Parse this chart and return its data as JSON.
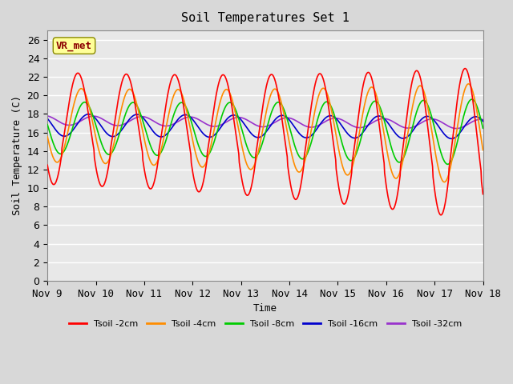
{
  "title": "Soil Temperatures Set 1",
  "xlabel": "Time",
  "ylabel": "Soil Temperature (C)",
  "xlim": [
    0,
    9
  ],
  "ylim": [
    0,
    27
  ],
  "yticks": [
    0,
    2,
    4,
    6,
    8,
    10,
    12,
    14,
    16,
    18,
    20,
    22,
    24,
    26
  ],
  "xtick_labels": [
    "Nov 9",
    "Nov 10",
    "Nov 11",
    "Nov 12",
    "Nov 13",
    "Nov 14",
    "Nov 15",
    "Nov 16",
    "Nov 17",
    "Nov 18"
  ],
  "xtick_positions": [
    0,
    1,
    2,
    3,
    4,
    5,
    6,
    7,
    8,
    9
  ],
  "bg_color": "#e8e8e8",
  "plot_bg": "#e8e8e8",
  "grid_color": "#ffffff",
  "annotation_text": "VR_met",
  "annotation_box_color": "#ffff99",
  "annotation_text_color": "#8b0000",
  "colors": {
    "2cm": "#ff0000",
    "4cm": "#ff8c00",
    "8cm": "#00cc00",
    "16cm": "#0000cd",
    "32cm": "#9932cc"
  },
  "legend_labels": [
    "Tsoil -2cm",
    "Tsoil -4cm",
    "Tsoil -8cm",
    "Tsoil -16cm",
    "Tsoil -32cm"
  ]
}
